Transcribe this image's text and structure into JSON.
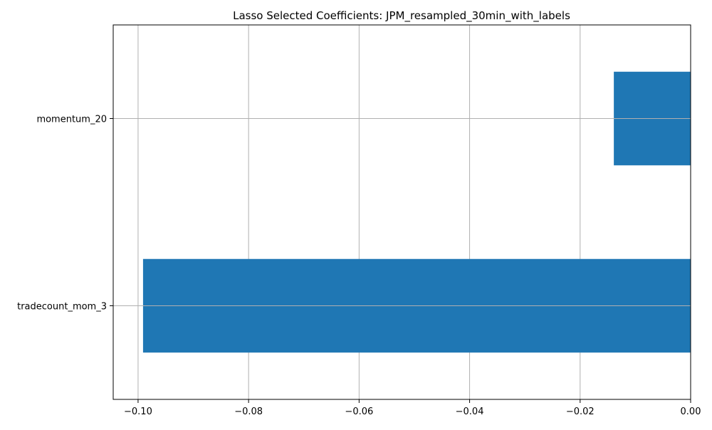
{
  "chart_data": {
    "type": "bar",
    "orientation": "horizontal",
    "title": "Lasso Selected Coefficients: JPM_resampled_30min_with_labels",
    "xlabel": "",
    "ylabel": "",
    "categories": [
      "momentum_20",
      "tradecount_mom_3"
    ],
    "values": [
      -0.0139,
      -0.0991
    ],
    "xlim": [
      -0.1045,
      0.0
    ],
    "xticks": [
      -0.1,
      -0.08,
      -0.06,
      -0.04,
      -0.02,
      0.0
    ],
    "xtick_labels": [
      "−0.10",
      "−0.08",
      "−0.06",
      "−0.04",
      "−0.02",
      "0.00"
    ],
    "grid": true,
    "bar_color": "#1f77b4",
    "grid_color": "#b0b0b0"
  }
}
